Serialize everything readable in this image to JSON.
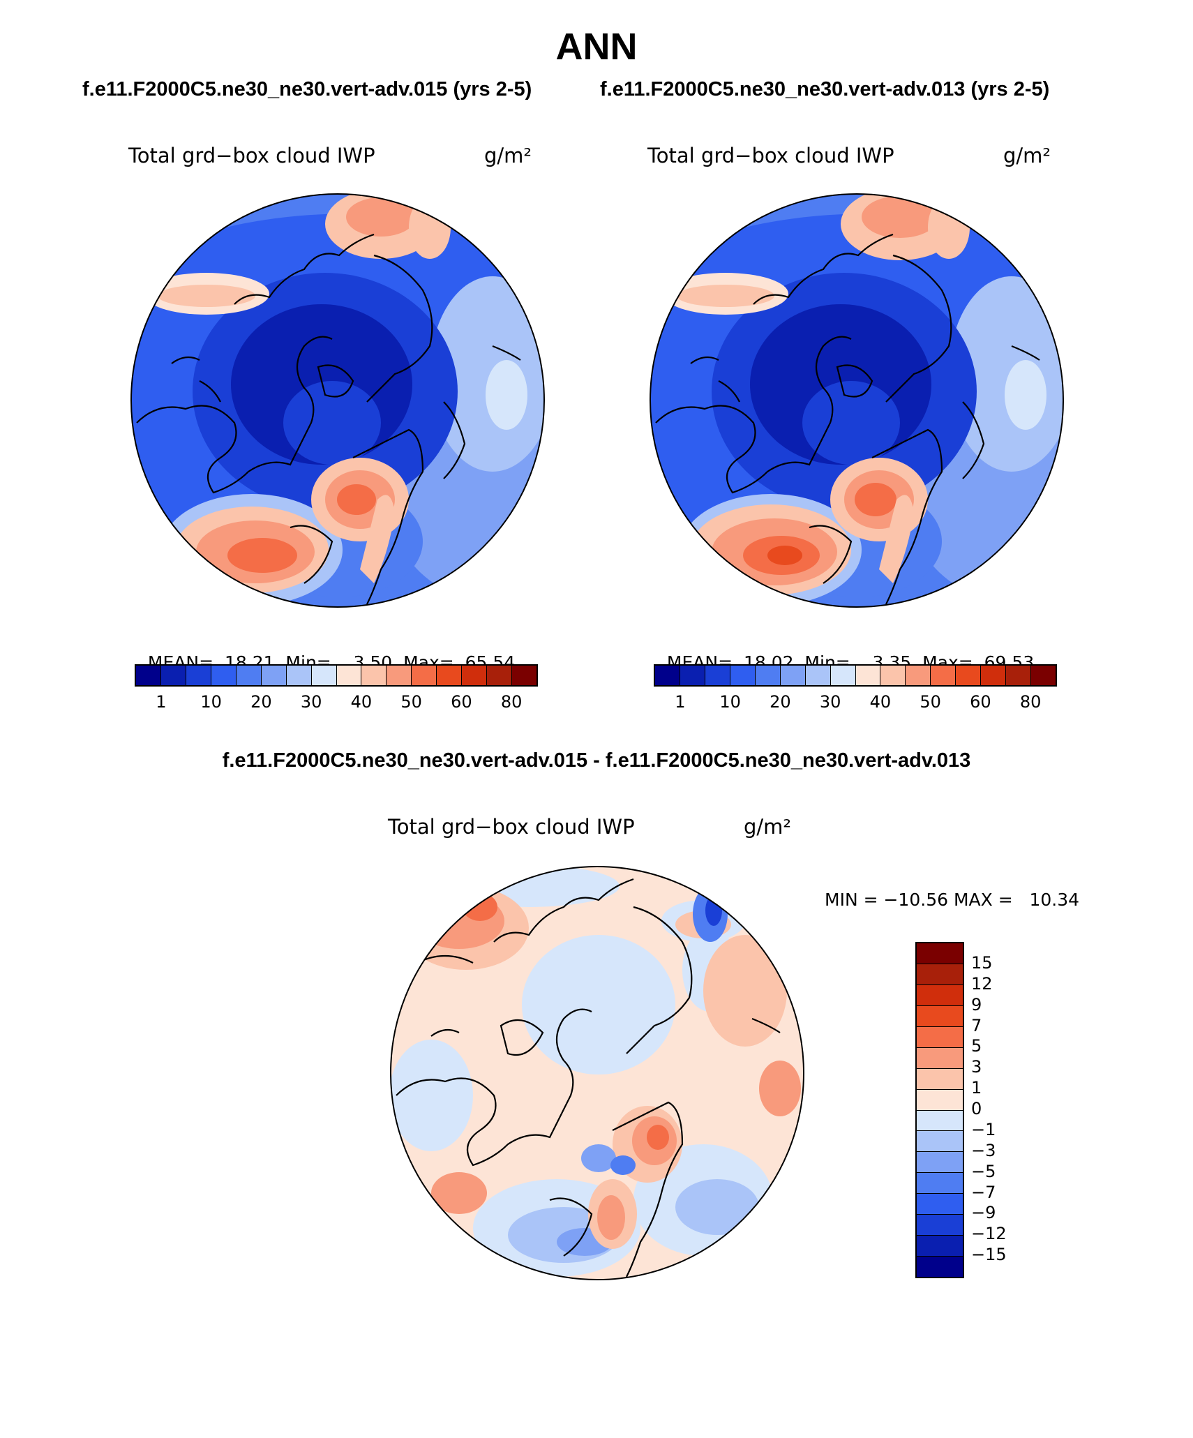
{
  "title": "ANN",
  "case_titles": [
    "f.e11.F2000C5.ne30_ne30.vert-adv.015 (yrs 2-5)",
    "f.e11.F2000C5.ne30_ne30.vert-adv.013 (yrs 2-5)"
  ],
  "diff_title": "f.e11.F2000C5.ne30_ne30.vert-adv.015 - f.e11.F2000C5.ne30_ne30.vert-adv.013",
  "variable": "Total grd−box cloud IWP",
  "units": "g/m²",
  "panels": [
    {
      "mean_label": "MEAN=",
      "mean": "18.21",
      "min_label": "Min=",
      "min": "3.50",
      "max_label": "Max=",
      "max": "65.54"
    },
    {
      "mean_label": "MEAN=",
      "mean": "18.02",
      "min_label": "Min=",
      "min": "3.35",
      "max_label": "Max=",
      "max": "69.53"
    }
  ],
  "diff_stats": "MIN = −10.56 MAX =   10.34",
  "colorbar_abs": {
    "labels": [
      "1",
      "10",
      "20",
      "30",
      "40",
      "50",
      "60",
      "80"
    ],
    "colors": [
      "#00008b",
      "#0a1fb0",
      "#1a3fd6",
      "#2f5ef0",
      "#4f7df2",
      "#7ea1f5",
      "#aac4f8",
      "#d6e6fb",
      "#fde4d6",
      "#fbc4ab",
      "#f89a7c",
      "#f46d47",
      "#e84a1e",
      "#d02e0c",
      "#a8200a",
      "#7a0000"
    ]
  },
  "colorbar_diff": {
    "labels": [
      "15",
      "12",
      "9",
      "7",
      "5",
      "3",
      "1",
      "0",
      "−1",
      "−3",
      "−5",
      "−7",
      "−9",
      "−12",
      "−15"
    ],
    "colors": [
      "#7a0000",
      "#a8200a",
      "#d02e0c",
      "#e84a1e",
      "#f46d47",
      "#f89a7c",
      "#fbc4ab",
      "#fde4d6",
      "#d6e6fb",
      "#aac4f8",
      "#7ea1f5",
      "#4f7df2",
      "#2f5ef0",
      "#1a3fd6",
      "#0a1fb0",
      "#00008b"
    ]
  }
}
